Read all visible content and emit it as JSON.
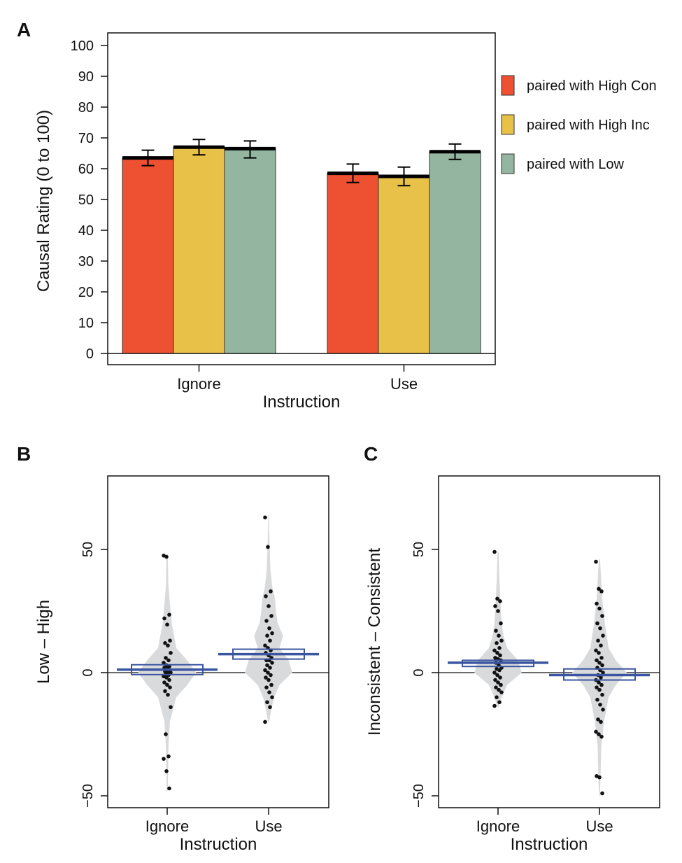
{
  "colors": {
    "high_con": "#ee5032",
    "high_inc": "#e8c148",
    "low": "#94b6a1",
    "violin": "#d9dadc",
    "box": "#3a55a0",
    "point": "#111111"
  },
  "chart_data": [
    {
      "panel": "A",
      "type": "bar",
      "xlabel": "Instruction",
      "ylabel": "Causal Rating (0 to 100)",
      "ylim": [
        0,
        100
      ],
      "yticks": [
        0,
        10,
        20,
        30,
        40,
        50,
        60,
        70,
        80,
        90,
        100
      ],
      "categories": [
        "Ignore",
        "Use"
      ],
      "series": [
        {
          "name": "paired with High Con",
          "color_key": "high_con",
          "values": [
            63.5,
            58.5
          ],
          "err_low": [
            61.0,
            55.5
          ],
          "err_high": [
            66.0,
            61.5
          ]
        },
        {
          "name": "paired with High Inc",
          "color_key": "high_inc",
          "values": [
            67.0,
            57.5
          ],
          "err_low": [
            64.5,
            54.5
          ],
          "err_high": [
            69.5,
            60.5
          ]
        },
        {
          "name": "paired with Low",
          "color_key": "low",
          "values": [
            66.5,
            65.5
          ],
          "err_low": [
            63.5,
            63.0
          ],
          "err_high": [
            69.0,
            68.0
          ]
        }
      ],
      "legend_position": "right"
    },
    {
      "panel": "B",
      "type": "scatter",
      "xlabel": "Instruction",
      "ylabel": "Low – High",
      "ylim": [
        -55,
        80
      ],
      "yticks": [
        -50,
        0,
        50
      ],
      "categories": [
        "Ignore",
        "Use"
      ],
      "groups": [
        {
          "name": "Ignore",
          "mean": 1.2,
          "ci": [
            -0.8,
            3.2
          ],
          "points": [
            47.5,
            47,
            23.5,
            22,
            19.5,
            13,
            12,
            11,
            8,
            6,
            5,
            4,
            3,
            2.5,
            2,
            1.5,
            1,
            0.5,
            0,
            0,
            -0.5,
            -1,
            -1.5,
            -2,
            -3,
            -4,
            -5,
            -6,
            -7.5,
            -9,
            -14,
            -25,
            -34,
            -35,
            -40,
            -47
          ],
          "violin": [
            [
              -48,
              0.3
            ],
            [
              -40,
              0.5
            ],
            [
              -30,
              0.7
            ],
            [
              -20,
              1.5
            ],
            [
              -10,
              5
            ],
            [
              -5,
              11
            ],
            [
              0,
              16
            ],
            [
              5,
              11
            ],
            [
              10,
              5
            ],
            [
              20,
              2.5
            ],
            [
              28,
              1.5
            ],
            [
              36,
              0.6
            ],
            [
              42,
              0.5
            ],
            [
              48,
              0.3
            ]
          ]
        },
        {
          "name": "Use",
          "mean": 7.5,
          "ci": [
            5.5,
            9.5
          ],
          "points": [
            63,
            51,
            33,
            31,
            27,
            23,
            21,
            18,
            16,
            15,
            13,
            11,
            10,
            9,
            8,
            7,
            6,
            5,
            5,
            4,
            3,
            2,
            1,
            0,
            -1,
            -2,
            -3,
            -5,
            -6,
            -8,
            -10,
            -12,
            -14,
            -20
          ],
          "violin": [
            [
              -20,
              0.3
            ],
            [
              -15,
              1.5
            ],
            [
              -10,
              3
            ],
            [
              -5,
              6
            ],
            [
              0,
              13
            ],
            [
              5,
              11
            ],
            [
              10,
              6
            ],
            [
              15,
              8
            ],
            [
              20,
              5
            ],
            [
              25,
              4
            ],
            [
              30,
              3.5
            ],
            [
              35,
              2
            ],
            [
              42,
              1
            ],
            [
              50,
              0.6
            ],
            [
              58,
              0.3
            ],
            [
              64,
              0.2
            ]
          ]
        }
      ]
    },
    {
      "panel": "C",
      "type": "scatter",
      "xlabel": "Instruction",
      "ylabel": "Inconsistent – Consistent",
      "ylim": [
        -55,
        80
      ],
      "yticks": [
        -50,
        0,
        50
      ],
      "categories": [
        "Ignore",
        "Use"
      ],
      "groups": [
        {
          "name": "Ignore",
          "mean": 4.0,
          "ci": [
            2.5,
            5.0
          ],
          "points": [
            49,
            30,
            29,
            27,
            25,
            20,
            17,
            15,
            13,
            12,
            10,
            9,
            8,
            7,
            6,
            5.5,
            5,
            4,
            3,
            2,
            1.5,
            1,
            0,
            -1,
            -2,
            -3,
            -4,
            -5,
            -6,
            -7,
            -8,
            -10,
            -12,
            -13.5
          ],
          "violin": [
            [
              -14,
              0.3
            ],
            [
              -10,
              2
            ],
            [
              -5,
              5
            ],
            [
              0,
              13
            ],
            [
              5,
              11
            ],
            [
              10,
              5
            ],
            [
              15,
              3
            ],
            [
              20,
              2
            ],
            [
              30,
              1.2
            ],
            [
              40,
              0.6
            ],
            [
              49,
              0.3
            ]
          ]
        },
        {
          "name": "Use",
          "mean": -1.0,
          "ci": [
            -3.0,
            1.5
          ],
          "points": [
            45,
            34,
            33,
            28,
            26,
            23,
            20,
            18,
            15,
            13,
            11,
            9,
            8,
            6,
            5,
            4,
            3,
            2,
            1,
            0,
            -1,
            -2,
            -3,
            -4,
            -5,
            -6,
            -7,
            -9,
            -11,
            -13,
            -15,
            -19,
            -20,
            -24,
            -25,
            -26,
            -42,
            -42.5,
            -49
          ],
          "violin": [
            [
              -50,
              0.2
            ],
            [
              -45,
              0.5
            ],
            [
              -40,
              0.7
            ],
            [
              -30,
              1
            ],
            [
              -20,
              2.5
            ],
            [
              -10,
              5
            ],
            [
              -5,
              9
            ],
            [
              0,
              15
            ],
            [
              5,
              9
            ],
            [
              10,
              5
            ],
            [
              20,
              3
            ],
            [
              30,
              1.5
            ],
            [
              40,
              0.8
            ],
            [
              46,
              0.3
            ]
          ]
        }
      ]
    }
  ]
}
